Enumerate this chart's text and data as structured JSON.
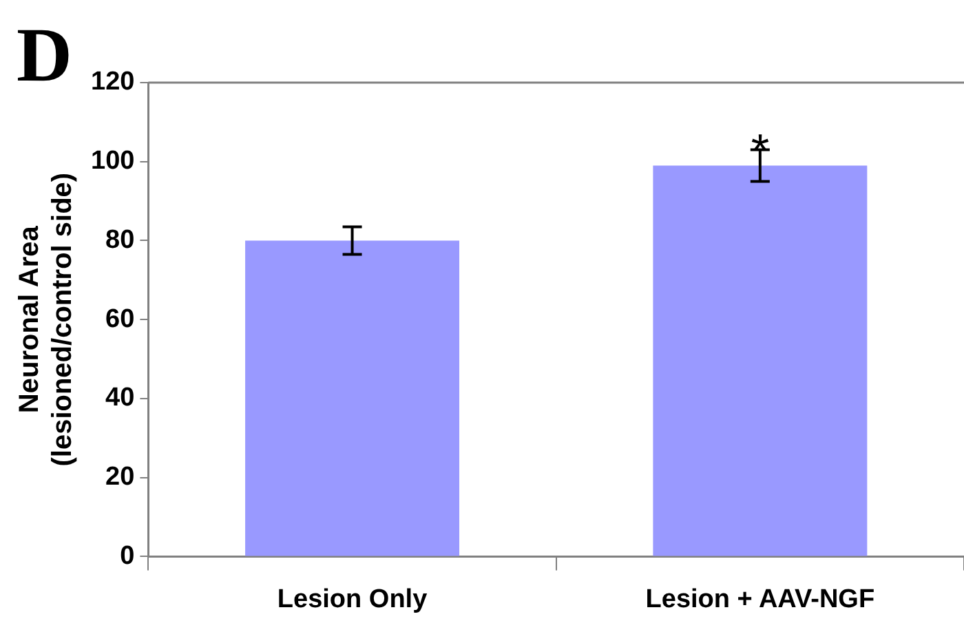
{
  "chart_data": {
    "type": "bar",
    "ylabel": "Neuronal Area\n(lesioned/control side)",
    "categories": [
      "Lesion Only",
      "Lesion + AAV-NGF"
    ],
    "values": [
      80,
      99
    ],
    "errors": [
      3.5,
      4
    ],
    "color": "#9999ff",
    "ylim": [
      0,
      120
    ],
    "yticks": [
      0,
      20,
      40,
      60,
      80,
      100,
      120
    ],
    "grid": false,
    "legend": false,
    "annotations": [
      "D",
      {
        "text": "*",
        "x": "Lesion + AAV-NGF",
        "y": 103
      }
    ]
  }
}
